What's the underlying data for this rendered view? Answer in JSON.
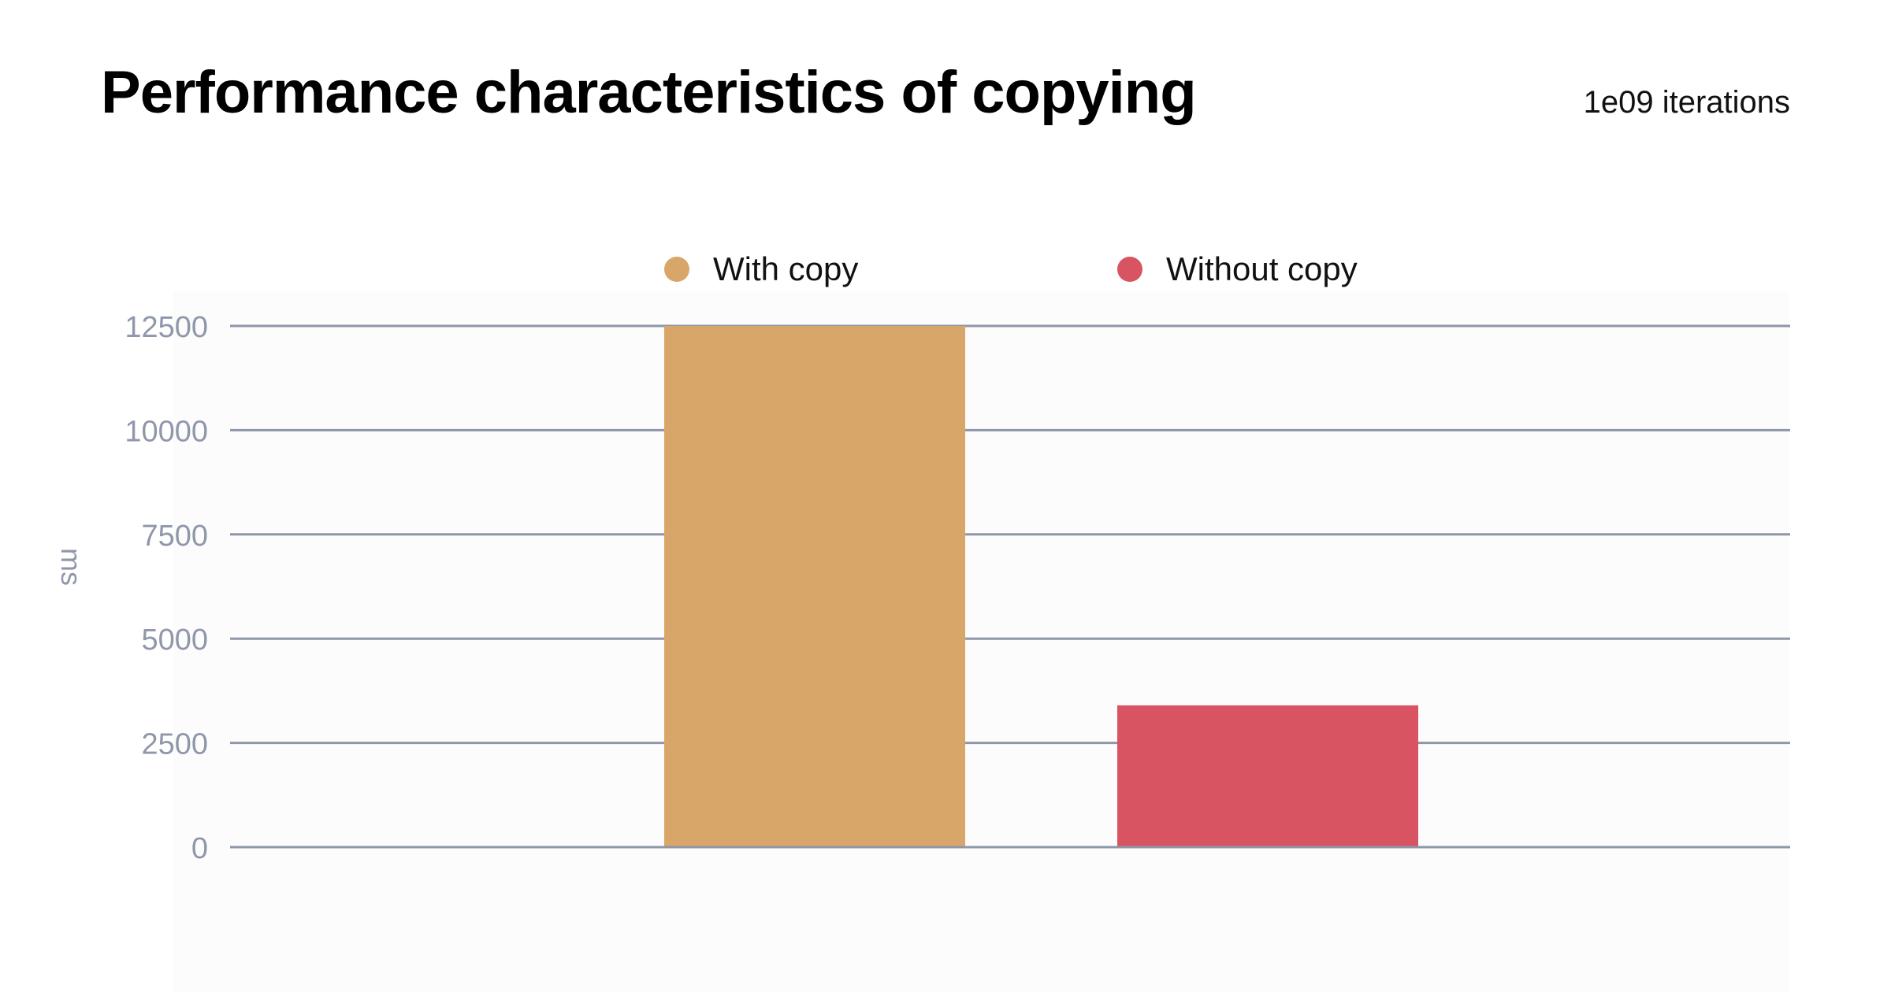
{
  "chart_data": {
    "type": "bar",
    "title": "Performance characteristics of copying",
    "subtitle": "1e09 iterations",
    "xlabel": "",
    "ylabel": "ms",
    "ylim": [
      0,
      12500
    ],
    "yticks": [
      0,
      2500,
      5000,
      7500,
      10000,
      12500
    ],
    "ytick_labels": [
      "0",
      "2500",
      "5000",
      "7500",
      "10000",
      "12500"
    ],
    "grid": true,
    "legend_position": "top-center",
    "series": [
      {
        "name": "With copy",
        "value": 12500,
        "color": "#d9a66a"
      },
      {
        "name": "Without copy",
        "value": 3400,
        "color": "#d85462"
      }
    ]
  }
}
